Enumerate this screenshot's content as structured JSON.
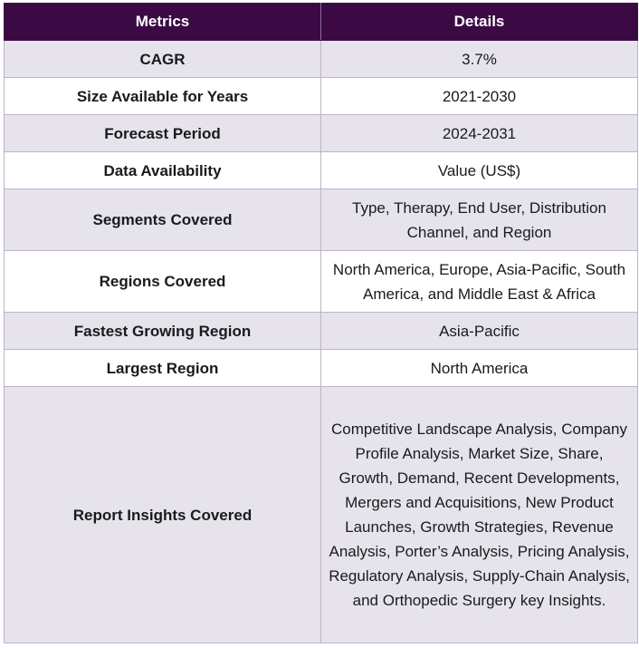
{
  "table": {
    "headers": [
      "Metrics",
      "Details"
    ],
    "rows": [
      {
        "metric": "CAGR",
        "details": "3.7%"
      },
      {
        "metric": "Size Available for Years",
        "details": "2021-2030"
      },
      {
        "metric": "Forecast Period",
        "details": "2024-2031"
      },
      {
        "metric": "Data Availability",
        "details": "Value (US$)"
      },
      {
        "metric": "Segments Covered",
        "details": "Type, Therapy, End User, Distribution Channel, and Region"
      },
      {
        "metric": "Regions Covered",
        "details": "North America, Europe, Asia-Pacific, South America, and Middle East & Africa"
      },
      {
        "metric": "Fastest Growing Region",
        "details": "Asia-Pacific"
      },
      {
        "metric": "Largest Region",
        "details": "North America"
      },
      {
        "metric": "Report Insights Covered",
        "details": "Competitive Landscape Analysis, Company Profile Analysis, Market Size, Share, Growth, Demand, Recent Developments, Mergers and Acquisitions, New Product Launches, Growth Strategies, Revenue Analysis, Porter’s Analysis, Pricing Analysis, Regulatory Analysis, Supply-Chain Analysis, and Orthopedic Surgery key Insights."
      }
    ]
  },
  "colors": {
    "header_bg": "#3b0a45",
    "header_text": "#ffffff",
    "row_alt_bg": "#e6e3ec",
    "row_bg": "#ffffff",
    "border": "#bdb3c7"
  }
}
